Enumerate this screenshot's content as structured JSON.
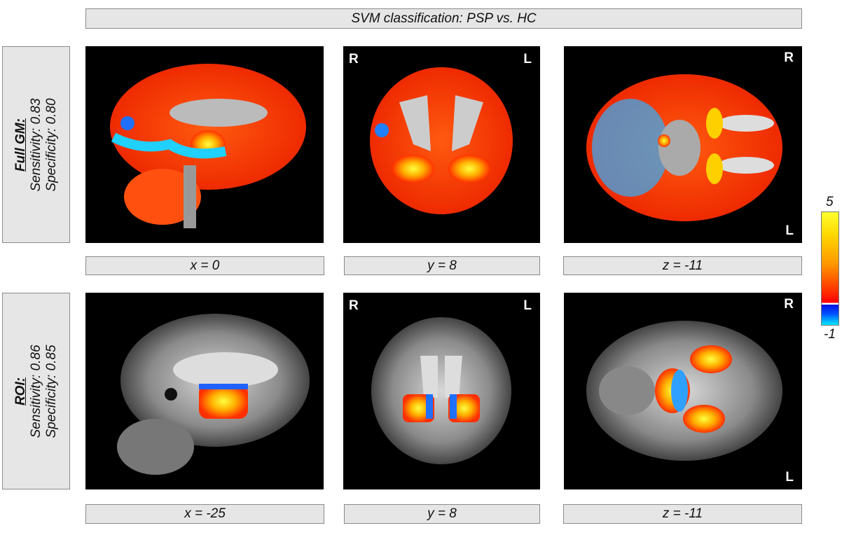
{
  "title": "SVM classification: PSP vs. HC",
  "rows": [
    {
      "heading": "Full GM:",
      "sensitivity": "Sensitivity: 0.83",
      "specificity": "Specificity: 0.80",
      "captions": [
        "x = 0",
        "y = 8",
        "z = -11"
      ]
    },
    {
      "heading": "ROI:",
      "sensitivity": "Sensitivity: 0.86",
      "specificity": "Specificity: 0.85",
      "captions": [
        "x = -25",
        "y = 8",
        "z = -11"
      ]
    }
  ],
  "orientation": {
    "right": "R",
    "left": "L"
  },
  "colorbar": {
    "max": "5",
    "min": "-1",
    "colors": [
      "#ffff30",
      "#ff9a00",
      "#ff0000",
      "#0010e0",
      "#00e8ff"
    ]
  }
}
